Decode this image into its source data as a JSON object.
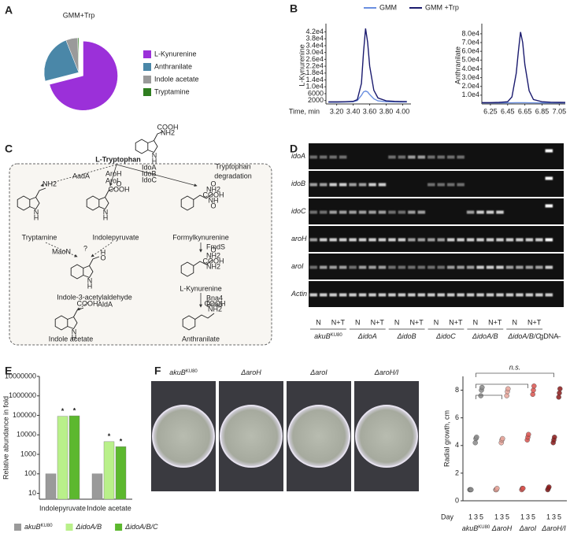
{
  "panel_labels": [
    "A",
    "B",
    "C",
    "D",
    "E",
    "F"
  ],
  "chart_data": [
    {
      "type": "pie",
      "title": "GMM+Trp",
      "categories": [
        "L-Kynurenine",
        "Anthranilate",
        "Indole acetate",
        "Tryptamine"
      ],
      "values": [
        71,
        23,
        5.5,
        0.5
      ],
      "colors": [
        "#9b30d9",
        "#4a87a8",
        "#9a9a9a",
        "#2e7d1f"
      ],
      "explode": [
        true,
        false,
        false,
        false
      ]
    },
    {
      "type": "line",
      "ylabel": "L-Kynurenine",
      "xlabel": "Time, min",
      "x": [
        3.1,
        3.2,
        3.3,
        3.4,
        3.45,
        3.5,
        3.525,
        3.55,
        3.575,
        3.6,
        3.65,
        3.7,
        3.8,
        3.9,
        4.0,
        4.05
      ],
      "series": [
        {
          "name": "GMM",
          "color": "#6a8fe0",
          "values": [
            1000,
            1000,
            1100,
            1300,
            2000,
            5000,
            7000,
            7500,
            7000,
            5500,
            3000,
            1800,
            1300,
            1200,
            1100,
            1100
          ]
        },
        {
          "name": "GMM +Trp",
          "color": "#1a1a6e",
          "values": [
            1200,
            1200,
            1300,
            1500,
            2500,
            12000,
            30000,
            44000,
            36000,
            22000,
            8000,
            3500,
            1800,
            1500,
            1400,
            1400
          ]
        }
      ],
      "xlim": [
        3.07,
        4.1
      ],
      "ylim": [
        0,
        45000
      ],
      "xticks": [
        {
          "value": 3.2,
          "label": "3.20"
        },
        {
          "value": 3.4,
          "label": "3.40"
        },
        {
          "value": 3.6,
          "label": "3.60"
        },
        {
          "value": 3.8,
          "label": "3.80"
        },
        {
          "value": 4.0,
          "label": "4.00"
        }
      ],
      "yticks": [
        {
          "value": 42000,
          "label": "4.2e4"
        },
        {
          "value": 38000,
          "label": "3.8e4"
        },
        {
          "value": 34000,
          "label": "3.4e4"
        },
        {
          "value": 30000,
          "label": "3.0e4"
        },
        {
          "value": 26000,
          "label": "2.6e4"
        },
        {
          "value": 22000,
          "label": "2.2e4"
        },
        {
          "value": 18000,
          "label": "1.8e4"
        },
        {
          "value": 14000,
          "label": "1.4e4"
        },
        {
          "value": 10000,
          "label": "1.0e4"
        },
        6000,
        2000
      ]
    },
    {
      "type": "line",
      "ylabel": "Anthranilate",
      "x": [
        6.15,
        6.25,
        6.35,
        6.45,
        6.5,
        6.55,
        6.575,
        6.6,
        6.625,
        6.65,
        6.7,
        6.75,
        6.85,
        6.95,
        7.05,
        7.12
      ],
      "series": [
        {
          "color": "#6a8fe0",
          "values": [
            1200,
            1200,
            1200,
            1300,
            1300,
            1400,
            1400,
            1400,
            1400,
            1400,
            1300,
            1300,
            1200,
            1200,
            1200,
            1200
          ]
        },
        {
          "color": "#1a1a6e",
          "values": [
            1500,
            1500,
            1800,
            2500,
            8000,
            35000,
            60000,
            82000,
            70000,
            45000,
            15000,
            5000,
            2500,
            2000,
            1800,
            1700
          ]
        }
      ],
      "xlim": [
        6.15,
        7.12
      ],
      "ylim": [
        0,
        88000
      ],
      "xticks": [
        6.25,
        6.45,
        6.65,
        6.85,
        7.05
      ],
      "yticks": [
        {
          "value": 80000,
          "label": "8.0e4"
        },
        {
          "value": 70000,
          "label": "7.0e4"
        },
        {
          "value": 60000,
          "label": "6.0e4"
        },
        {
          "value": 50000,
          "label": "5.0e4"
        },
        {
          "value": 40000,
          "label": "4.0e4"
        },
        {
          "value": 30000,
          "label": "3.0e4"
        },
        {
          "value": 20000,
          "label": "2.0e4"
        },
        {
          "value": 10000,
          "label": "1.0e4"
        }
      ]
    },
    {
      "type": "bar",
      "ylabel": "Relative abundance in fold",
      "log_scale": true,
      "categories": [
        "Indolepyruvate",
        "Indole acetate"
      ],
      "series": [
        {
          "name": "akuB",
          "name_sup": "KU80",
          "color": "#9a9a9a",
          "values": [
            100,
            100
          ]
        },
        {
          "name": "ΔidoA/B",
          "color": "#b9f08a",
          "values": [
            90000,
            4500
          ]
        },
        {
          "name": "ΔidoA/B/C",
          "color": "#5cb82e",
          "values": [
            95000,
            2500
          ]
        }
      ],
      "annotations": [
        {
          "text": "*",
          "category": "Indolepyruvate",
          "series": "ΔidoA/B"
        },
        {
          "text": "*",
          "category": "Indolepyruvate",
          "series": "ΔidoA/B/C"
        },
        {
          "text": "*",
          "category": "Indole acetate",
          "series": "ΔidoA/B"
        },
        {
          "text": "*",
          "category": "Indole acetate",
          "series": "ΔidoA/B/C"
        }
      ],
      "ylim": [
        5,
        10000000
      ],
      "yticks": [
        10,
        100,
        1000,
        10000,
        100000,
        1000000,
        10000000
      ]
    },
    {
      "type": "strip",
      "ylabel": "Radial growth, cm",
      "xlabel": "Day",
      "categories": [
        "1",
        "3",
        "5"
      ],
      "series": [
        {
          "name": "akuB",
          "name_sup": "KU80",
          "color": "#8a8a8a",
          "values": [
            [
              0.8,
              0.8,
              0.8
            ],
            [
              4.2,
              4.5,
              4.6
            ],
            [
              7.6,
              8.0,
              8.2
            ]
          ]
        },
        {
          "name": "ΔaroH",
          "color": "#e8a59a",
          "values": [
            [
              0.8,
              0.8,
              0.9
            ],
            [
              4.2,
              4.4,
              4.5
            ],
            [
              7.6,
              7.9,
              8.1
            ]
          ]
        },
        {
          "name": "ΔaroI",
          "color": "#d9534f",
          "values": [
            [
              0.8,
              0.9,
              0.9
            ],
            [
              4.4,
              4.6,
              4.8
            ],
            [
              7.7,
              8.0,
              8.3
            ]
          ]
        },
        {
          "name": "ΔaroH/I",
          "color": "#8b1a1a",
          "values": [
            [
              0.8,
              0.9,
              1.0
            ],
            [
              4.2,
              4.4,
              4.6
            ],
            [
              7.5,
              7.8,
              8.1
            ]
          ]
        }
      ],
      "annotation": "n.s.",
      "ylim": [
        0,
        9
      ],
      "yticks": [
        0,
        2,
        4,
        6,
        8
      ]
    }
  ],
  "pathway": {
    "title": "L-Tryptophan",
    "title_atoms": [
      "COOH",
      "NH2",
      "N",
      "H"
    ],
    "box_label": [
      "Tryptophan",
      "degradation"
    ],
    "nodes": [
      {
        "label": "Tryptamine",
        "atoms": [
          "NH2",
          "N",
          "H"
        ]
      },
      {
        "label": "Indolepyruvate",
        "atoms": [
          "O",
          "COOH",
          "N",
          "H"
        ]
      },
      {
        "label": "Formylkynurenine",
        "atoms": [
          "O",
          "NH2",
          "COOH",
          "NH",
          "O"
        ]
      },
      {
        "label": "Indole-3-acetylaldehyde",
        "atoms": [
          "H",
          "O",
          "N",
          "H"
        ]
      },
      {
        "label": "L-Kynurenine",
        "atoms": [
          "O",
          "NH2",
          "COOH",
          "NH2"
        ]
      },
      {
        "label": "Indole acetate",
        "atoms": [
          "COOH",
          "N",
          "H"
        ]
      },
      {
        "label": "Anthranilate",
        "atoms": [
          "COOH",
          "NH2"
        ]
      }
    ],
    "enzymes": [
      "AadA",
      "AroH",
      "AroI",
      "IdoA",
      "IdoB",
      "IdoC",
      "MaoN",
      "?",
      "FmdS",
      "AldA",
      "Bna4",
      "Bna5"
    ]
  },
  "gel": {
    "rows": [
      "idoA",
      "idoB",
      "idoC",
      "aroH",
      "aroI",
      "Actin"
    ],
    "lane_labels": [
      "N",
      "N+T"
    ],
    "strains": [
      {
        "name": "akuB",
        "sup": "KU80"
      },
      {
        "name": "ΔidoA"
      },
      {
        "name": "ΔidoB"
      },
      {
        "name": "ΔidoC"
      },
      {
        "name": "ΔidoA/B"
      },
      {
        "name": "ΔidoA/B/C"
      },
      {
        "name": "gDNA"
      },
      {
        "name": "–"
      }
    ]
  }
}
